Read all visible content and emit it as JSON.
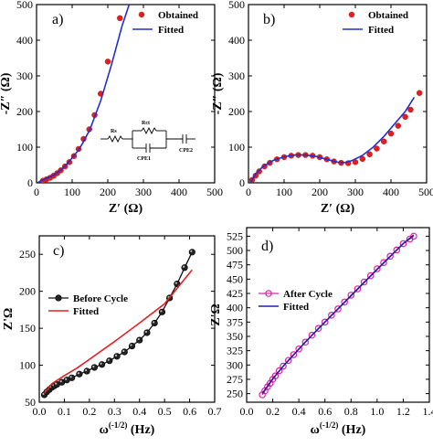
{
  "chart_data": [
    {
      "panel": "a)",
      "type": "scatter",
      "xlabel": "Z′ (Ω)",
      "ylabel": "-Z″ (Ω)",
      "xlim": [
        0,
        500
      ],
      "ylim": [
        0,
        500
      ],
      "xticks": [
        0,
        100,
        200,
        300,
        400,
        500
      ],
      "yticks": [
        0,
        100,
        200,
        300,
        400,
        500
      ],
      "legend_position": "top-right",
      "series": [
        {
          "name": "Obtained",
          "kind": "markers",
          "color": "#e02020",
          "x": [
            18,
            28,
            38,
            48,
            58,
            68,
            80,
            92,
            105,
            118,
            132,
            148,
            163,
            180,
            200,
            234
          ],
          "y": [
            6,
            10,
            14,
            20,
            27,
            35,
            46,
            58,
            75,
            95,
            123,
            150,
            190,
            250,
            340,
            462
          ]
        },
        {
          "name": "Fitted",
          "kind": "line",
          "color": "#2030d0",
          "x": [
            2,
            15,
            30,
            45,
            60,
            75,
            90,
            105,
            118,
            130,
            150,
            180,
            210,
            240,
            260
          ],
          "y": [
            0,
            7,
            13,
            20,
            30,
            42,
            58,
            76,
            92,
            112,
            150,
            230,
            330,
            440,
            500
          ]
        }
      ],
      "inset": {
        "labels": [
          "Rs",
          "Rct",
          "CPE1",
          "CPE2"
        ]
      }
    },
    {
      "panel": "b)",
      "type": "scatter",
      "xlabel": "Z′ (Ω)",
      "ylabel": "-Z″ (Ω)",
      "xlim": [
        0,
        500
      ],
      "ylim": [
        0,
        500
      ],
      "xticks": [
        0,
        100,
        200,
        300,
        400,
        500
      ],
      "yticks": [
        0,
        100,
        200,
        300,
        400,
        500
      ],
      "legend_position": "top-right",
      "series": [
        {
          "name": "Obtained",
          "kind": "markers",
          "color": "#e02020",
          "x": [
            10,
            20,
            30,
            45,
            60,
            80,
            100,
            120,
            140,
            160,
            180,
            200,
            220,
            240,
            260,
            280,
            300,
            320,
            340,
            360,
            380,
            400,
            420,
            440,
            455,
            480
          ],
          "y": [
            8,
            20,
            32,
            46,
            56,
            66,
            72,
            76,
            78,
            78,
            76,
            72,
            66,
            60,
            56,
            55,
            58,
            67,
            80,
            96,
            116,
            138,
            160,
            185,
            205,
            252
          ]
        },
        {
          "name": "Fitted",
          "kind": "line",
          "color": "#2030d0",
          "x": [
            5,
            20,
            40,
            70,
            100,
            130,
            160,
            190,
            220,
            250,
            270,
            290,
            320,
            350,
            380,
            410,
            440,
            465
          ],
          "y": [
            0,
            25,
            45,
            63,
            73,
            78,
            78,
            74,
            66,
            58,
            57,
            62,
            77,
            100,
            130,
            165,
            200,
            240
          ]
        }
      ]
    },
    {
      "panel": "c)",
      "type": "line",
      "xlabel": "ω(-1/2) (Hz)",
      "ylabel": "Z'Ω",
      "xlim": [
        0.0,
        0.7
      ],
      "ylim": [
        50,
        275
      ],
      "xticks": [
        0.0,
        0.1,
        0.2,
        0.3,
        0.4,
        0.5,
        0.6,
        0.7
      ],
      "xtick_labels": [
        "0.0",
        "0.1",
        "0.2",
        "0.3",
        "0.4",
        "0.5",
        "0.6",
        "0.7"
      ],
      "yticks": [
        50,
        100,
        150,
        200,
        250
      ],
      "legend_position": "middle-left",
      "series": [
        {
          "name": "Before Cycle",
          "kind": "line-markers",
          "color": "#111111",
          "x": [
            0.02,
            0.03,
            0.04,
            0.05,
            0.06,
            0.07,
            0.09,
            0.11,
            0.13,
            0.16,
            0.19,
            0.22,
            0.25,
            0.28,
            0.31,
            0.34,
            0.37,
            0.4,
            0.43,
            0.46,
            0.49,
            0.52,
            0.55,
            0.58,
            0.61
          ],
          "y": [
            60,
            64,
            67,
            70,
            72,
            74,
            77,
            80,
            83,
            88,
            92,
            97,
            101,
            106,
            112,
            118,
            126,
            134,
            144,
            157,
            172,
            191,
            210,
            232,
            253
          ]
        },
        {
          "name": "Fitted",
          "kind": "line",
          "color": "#e02020",
          "x": [
            0.02,
            0.05,
            0.1,
            0.15,
            0.2,
            0.3,
            0.4,
            0.5,
            0.61
          ],
          "y": [
            62,
            75,
            86,
            96,
            108,
            132,
            157,
            183,
            229
          ]
        }
      ]
    },
    {
      "panel": "d)",
      "type": "line",
      "xlabel": "ω(-1/2) (Hz)",
      "ylabel": "Z'Ω",
      "xlim": [
        0.0,
        1.4
      ],
      "ylim": [
        235,
        540
      ],
      "xticks": [
        0.0,
        0.2,
        0.4,
        0.6,
        0.8,
        1.0,
        1.2,
        1.4
      ],
      "xtick_labels": [
        "0.0",
        "0.2",
        "0.4",
        "0.6",
        "0.8",
        "1.0",
        "1.2",
        "1.4"
      ],
      "yticks": [
        250,
        275,
        300,
        325,
        350,
        375,
        400,
        425,
        450,
        475,
        500,
        525
      ],
      "legend_position": "middle-left",
      "series": [
        {
          "name": "After Cycle",
          "kind": "line-markers",
          "color": "#e020a0",
          "x": [
            0.12,
            0.14,
            0.16,
            0.18,
            0.2,
            0.22,
            0.25,
            0.28,
            0.32,
            0.36,
            0.4,
            0.45,
            0.5,
            0.55,
            0.6,
            0.65,
            0.7,
            0.75,
            0.8,
            0.85,
            0.9,
            0.95,
            1.0,
            1.05,
            1.1,
            1.15,
            1.2,
            1.25,
            1.28
          ],
          "y": [
            248,
            255,
            262,
            268,
            275,
            281,
            290,
            298,
            308,
            318,
            328,
            340,
            352,
            364,
            375,
            387,
            398,
            410,
            422,
            433,
            445,
            456,
            468,
            479,
            490,
            501,
            512,
            520,
            525
          ]
        },
        {
          "name": "Fitted",
          "kind": "line",
          "color": "#2020a0",
          "x": [
            0.12,
            0.2,
            0.3,
            0.45,
            0.6,
            0.8,
            1.0,
            1.2,
            1.28
          ],
          "y": [
            250,
            276,
            303,
            340,
            375,
            421,
            467,
            512,
            527
          ]
        }
      ]
    }
  ]
}
